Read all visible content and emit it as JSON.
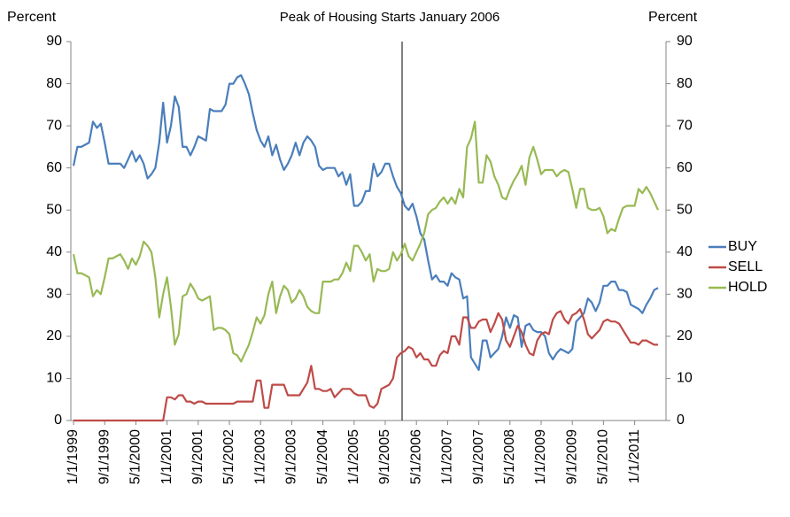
{
  "chart_data": {
    "type": "line",
    "title": "Peak of Housing Starts January 2006",
    "y_label": "Percent",
    "y2_label": "Percent",
    "categories": [
      "1/1/1999",
      null,
      null,
      null,
      null,
      null,
      null,
      null,
      "9/1/1999",
      null,
      null,
      null,
      null,
      null,
      null,
      null,
      "5/1/2000",
      null,
      null,
      null,
      null,
      null,
      null,
      null,
      "1/1/2001",
      null,
      null,
      null,
      null,
      null,
      null,
      null,
      "9/1/2001",
      null,
      null,
      null,
      null,
      null,
      null,
      null,
      "5/1/2002",
      null,
      null,
      null,
      null,
      null,
      null,
      null,
      "1/1/2003",
      null,
      null,
      null,
      null,
      null,
      null,
      null,
      "9/1/2003",
      null,
      null,
      null,
      null,
      null,
      null,
      null,
      "5/1/2004",
      null,
      null,
      null,
      null,
      null,
      null,
      null,
      "1/1/2005",
      null,
      null,
      null,
      null,
      null,
      null,
      null,
      "9/1/2005",
      null,
      null,
      null,
      null,
      null,
      null,
      null,
      "5/1/2006",
      null,
      null,
      null,
      null,
      null,
      null,
      null,
      "1/1/2007",
      null,
      null,
      null,
      null,
      null,
      null,
      null,
      "9/1/2007",
      null,
      null,
      null,
      null,
      null,
      null,
      null,
      "5/1/2008",
      null,
      null,
      null,
      null,
      null,
      null,
      null,
      "1/1/2009",
      null,
      null,
      null,
      null,
      null,
      null,
      null,
      "9/1/2009",
      null,
      null,
      null,
      null,
      null,
      null,
      null,
      "5/1/2010",
      null,
      null,
      null,
      null,
      null,
      null,
      null,
      "1/1/2011",
      null,
      null,
      null,
      null,
      null,
      null
    ],
    "series": [
      {
        "name": "BUY",
        "color": "#4a7ebb",
        "values": [
          60.5,
          65,
          65,
          65.5,
          66,
          71,
          69.5,
          70.5,
          66,
          61,
          61,
          61,
          61,
          60,
          62,
          64,
          61.5,
          63,
          61,
          57.5,
          58.5,
          60,
          66,
          75.5,
          66,
          70,
          77,
          74.5,
          65,
          65,
          63,
          65,
          67.5,
          67,
          66.5,
          74,
          73.5,
          73.5,
          73.5,
          75,
          80,
          80,
          81.5,
          82,
          80,
          77.5,
          73,
          69,
          66.5,
          65,
          67.5,
          63,
          65.5,
          62,
          59.5,
          61,
          63,
          66,
          63,
          66,
          67.5,
          66.5,
          65,
          60.5,
          59.5,
          60,
          60,
          60,
          58,
          59,
          56,
          58.5,
          51,
          51,
          52,
          54.5,
          54.5,
          61,
          58,
          59,
          61,
          61,
          58,
          55.5,
          54,
          51,
          50,
          51.5,
          48.5,
          44.5,
          43,
          38,
          33.5,
          34.5,
          33,
          33,
          32,
          35,
          34,
          33.5,
          29,
          29.5,
          15,
          13.5,
          12,
          19,
          19,
          15,
          16,
          17,
          20,
          24.5,
          22,
          25,
          24.5,
          17.5,
          22.5,
          23,
          21.5,
          21,
          21,
          20,
          16,
          14.5,
          16,
          17,
          16.5,
          16,
          17,
          23.5,
          24.5,
          25.5,
          29,
          28,
          26,
          28,
          32,
          32,
          33,
          33,
          31,
          31,
          30.5,
          27.5,
          27,
          26.5,
          25.5,
          27.5,
          29,
          31,
          31.5
        ]
      },
      {
        "name": "SELL",
        "color": "#be4b48",
        "values": [
          0,
          0,
          0,
          0,
          0,
          0,
          0,
          0,
          0,
          0,
          0,
          0,
          0,
          0,
          0,
          0,
          0,
          0,
          0,
          0,
          0,
          0,
          0,
          0,
          5.5,
          5.5,
          5,
          6,
          6,
          4.5,
          4.5,
          4,
          4.5,
          4.5,
          4,
          4,
          4,
          4,
          4,
          4,
          4,
          4,
          4.5,
          4.5,
          4.5,
          4.5,
          4.5,
          9.5,
          9.5,
          3,
          3,
          8.5,
          8.5,
          8.5,
          8.5,
          6,
          6,
          6,
          6,
          7.5,
          9,
          13,
          7.5,
          7.5,
          7,
          7,
          7.5,
          5.5,
          6.5,
          7.5,
          7.5,
          7.5,
          6.5,
          6,
          6,
          6,
          3.5,
          3,
          4,
          7.5,
          8,
          8.5,
          10,
          15,
          16,
          16.5,
          17.5,
          17,
          15,
          16,
          14.5,
          14.5,
          13,
          13,
          15.5,
          16.5,
          16,
          20,
          20,
          18,
          24.5,
          24.5,
          22,
          22,
          23.5,
          24,
          24,
          21,
          23,
          25.5,
          24,
          19,
          17.5,
          20,
          22.5,
          21,
          18,
          16,
          15.5,
          19,
          20.5,
          21,
          20.5,
          24,
          25.5,
          26,
          24,
          23,
          25,
          25.5,
          26.5,
          24,
          20.5,
          19.5,
          20.5,
          21.5,
          23.5,
          24,
          23.5,
          23.5,
          23,
          21.5,
          20,
          18.5,
          18.5,
          18,
          19,
          19,
          18.5,
          18,
          18
        ]
      },
      {
        "name": "HOLD",
        "color": "#98b954",
        "values": [
          39.5,
          35,
          35,
          34.5,
          34,
          29.5,
          31,
          30,
          34,
          38.5,
          38.5,
          39,
          39.5,
          38,
          36,
          38.5,
          37,
          39,
          42.5,
          41.5,
          40,
          34,
          24.5,
          30,
          34,
          27,
          18,
          20.5,
          29.5,
          30,
          32.5,
          31,
          29,
          28.5,
          29,
          29.5,
          21.5,
          22,
          22,
          21.5,
          20.5,
          16,
          15.5,
          14,
          16,
          18,
          21,
          24.5,
          23,
          25,
          30,
          33,
          25.5,
          29.5,
          32,
          31,
          28,
          29,
          31,
          29.5,
          27,
          26,
          25.5,
          25.5,
          33,
          33,
          33,
          33.5,
          33.5,
          35,
          37.5,
          35.5,
          41.5,
          41.5,
          40,
          38,
          39.5,
          33,
          36,
          35.5,
          35.5,
          36,
          40,
          38,
          39.5,
          42,
          39,
          38,
          40,
          42,
          44.5,
          49,
          50,
          50.5,
          52,
          53,
          51.5,
          53,
          51.5,
          55,
          53,
          65,
          67,
          71,
          56.5,
          56.5,
          63,
          61.5,
          58,
          56,
          53,
          52.5,
          55,
          57,
          58.5,
          60.5,
          56,
          62.5,
          65,
          62,
          58.5,
          59.5,
          59.5,
          59.5,
          58,
          59,
          59.5,
          59,
          55,
          50.5,
          55,
          55,
          50.5,
          50,
          50,
          50.5,
          48.5,
          44.5,
          45.5,
          45,
          48,
          50.5,
          51,
          51,
          51,
          55,
          54,
          55.5,
          54,
          52,
          50
        ]
      }
    ],
    "ylim": [
      0,
      90
    ],
    "yticks": [
      0,
      10,
      20,
      30,
      40,
      50,
      60,
      70,
      80,
      90
    ],
    "y2lim": [
      0,
      90
    ],
    "y2ticks": [
      0,
      10,
      20,
      30,
      40,
      50,
      60,
      70,
      80,
      90
    ],
    "grid": false,
    "legend": "right"
  }
}
